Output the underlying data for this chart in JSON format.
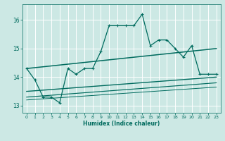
{
  "xlabel": "Humidex (Indice chaleur)",
  "bg_color": "#cce8e4",
  "grid_color": "#ffffff",
  "line_color": "#006b5e",
  "xlim": [
    -0.5,
    23.5
  ],
  "ylim": [
    12.75,
    16.55
  ],
  "yticks": [
    13,
    14,
    15,
    16
  ],
  "xticks": [
    0,
    1,
    2,
    3,
    4,
    5,
    6,
    7,
    8,
    9,
    10,
    11,
    12,
    13,
    14,
    15,
    16,
    17,
    18,
    19,
    20,
    21,
    22,
    23
  ],
  "series": [
    {
      "x": [
        0,
        1,
        2,
        3,
        4,
        5,
        6,
        7,
        8,
        9,
        10,
        11,
        12,
        13,
        14,
        15,
        16,
        17,
        18,
        19,
        20,
        21,
        22,
        23
      ],
      "y": [
        14.3,
        13.9,
        13.3,
        13.3,
        13.1,
        14.3,
        14.1,
        14.3,
        14.3,
        14.9,
        15.8,
        15.8,
        15.8,
        15.8,
        16.2,
        15.1,
        15.3,
        15.3,
        15.0,
        14.7,
        15.1,
        14.1,
        14.1,
        14.1
      ],
      "marker": "+",
      "markersize": 3.5,
      "linewidth": 0.9
    },
    {
      "x": [
        0,
        23
      ],
      "y": [
        14.3,
        15.0
      ],
      "marker": null,
      "linewidth": 1.1
    },
    {
      "x": [
        0,
        23
      ],
      "y": [
        13.5,
        14.0
      ],
      "marker": null,
      "linewidth": 1.0
    },
    {
      "x": [
        0,
        23
      ],
      "y": [
        13.3,
        13.8
      ],
      "marker": null,
      "linewidth": 0.85
    },
    {
      "x": [
        0,
        23
      ],
      "y": [
        13.2,
        13.65
      ],
      "marker": null,
      "linewidth": 0.7
    }
  ]
}
